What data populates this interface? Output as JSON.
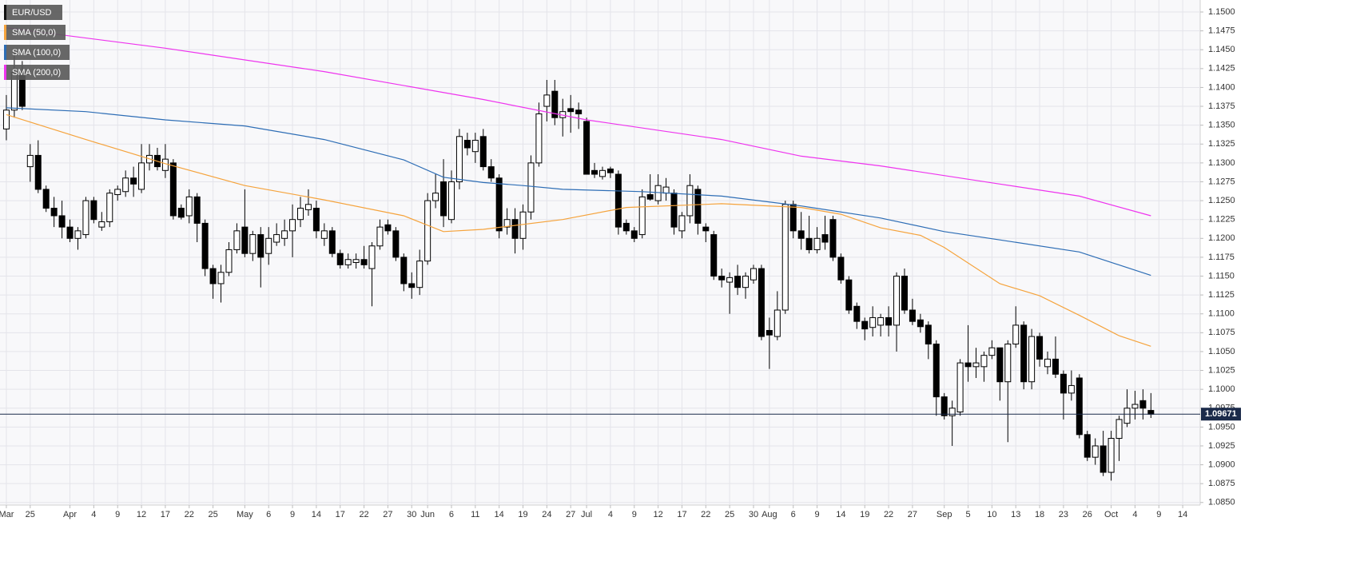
{
  "chart_data": {
    "type": "candlestick",
    "categories": [
      null,
      null,
      null,
      null,
      null,
      null,
      null,
      null,
      null,
      null,
      null,
      null,
      null,
      null,
      null,
      null,
      null,
      null,
      null,
      null,
      null,
      null,
      null,
      null,
      null,
      null,
      null,
      null,
      null,
      null,
      null,
      null,
      null,
      null,
      null,
      null,
      null,
      null,
      null,
      null,
      null,
      null,
      null,
      null,
      null,
      null,
      null,
      null,
      null,
      null,
      null,
      null,
      null,
      null,
      null,
      null,
      null,
      null,
      null,
      null,
      null,
      null,
      null,
      null,
      null,
      null,
      null,
      null,
      null,
      null,
      null,
      null,
      null,
      null,
      null,
      null,
      null,
      null,
      null,
      null,
      null,
      null,
      null,
      null,
      null,
      null,
      null,
      null,
      null,
      null,
      null,
      null,
      null,
      null,
      null,
      null,
      null,
      null,
      null,
      null,
      null,
      null,
      null,
      null,
      null,
      null,
      null,
      null,
      null,
      null,
      null,
      null,
      null,
      null,
      null,
      null,
      null,
      null,
      null,
      null,
      null,
      null,
      null,
      null,
      null,
      null,
      null,
      null,
      null,
      null,
      null,
      null,
      null,
      null,
      null,
      null,
      null,
      null,
      null,
      null,
      null,
      null,
      null,
      null,
      null
    ],
    "series": [
      {
        "name": "EUR/USD",
        "color": "#000000",
        "open": [
          1.1345,
          1.137,
          1.142,
          1.1295,
          1.131,
          1.1265,
          1.124,
          1.123,
          1.1215,
          1.12,
          1.1205,
          1.125,
          1.1215,
          1.1222,
          1.1258,
          1.1262,
          1.128,
          1.1265,
          1.13,
          1.131,
          1.129,
          1.13,
          1.124,
          1.123,
          1.1255,
          1.122,
          1.116,
          1.114,
          1.1155,
          1.1185,
          1.1215,
          1.118,
          1.1205,
          1.118,
          1.1195,
          1.12,
          1.121,
          1.1225,
          1.1238,
          1.124,
          1.12,
          1.121,
          1.118,
          1.1165,
          1.1168,
          1.1172,
          1.116,
          1.119,
          1.1218,
          1.121,
          1.1175,
          1.114,
          1.1135,
          1.117,
          1.125,
          1.1275,
          1.1225,
          1.1275,
          1.133,
          1.1315,
          1.1335,
          1.1295,
          1.128,
          1.1215,
          1.1225,
          1.12,
          1.1235,
          1.13,
          1.1375,
          1.1395,
          1.136,
          1.1372,
          1.137,
          1.1355,
          1.129,
          1.1282,
          1.1292,
          1.1285,
          1.122,
          1.121,
          1.1205,
          1.1258,
          1.125,
          1.126,
          1.126,
          1.121,
          1.123,
          1.1265,
          1.1215,
          1.1205,
          1.115,
          1.1142,
          1.115,
          1.1135,
          1.1145,
          1.116,
          1.1078,
          1.107,
          1.1105,
          1.1245,
          1.121,
          1.12,
          1.1185,
          1.1205,
          1.1225,
          1.1175,
          1.1145,
          1.111,
          1.109,
          1.1082,
          1.1085,
          1.1095,
          1.1085,
          1.115,
          1.1105,
          1.1092,
          1.1085,
          1.106,
          1.099,
          1.0965,
          1.097,
          1.1035,
          1.103,
          1.103,
          1.1045,
          1.1055,
          1.101,
          1.106,
          1.1085,
          1.101,
          1.107,
          1.103,
          1.104,
          1.102,
          1.0995,
          1.1015,
          1.094,
          1.091,
          1.0925,
          1.089,
          1.0935,
          1.0955,
          1.0975,
          1.0985,
          1.0972
        ],
        "high": [
          1.139,
          1.145,
          1.1435,
          1.1325,
          1.133,
          1.127,
          1.1255,
          1.125,
          1.1225,
          1.1215,
          1.1255,
          1.1255,
          1.1235,
          1.1265,
          1.127,
          1.129,
          1.1295,
          1.1325,
          1.1325,
          1.132,
          1.1325,
          1.1305,
          1.1245,
          1.1265,
          1.126,
          1.1225,
          1.1165,
          1.1165,
          1.1195,
          1.122,
          1.1265,
          1.121,
          1.1215,
          1.1215,
          1.122,
          1.1225,
          1.1245,
          1.1255,
          1.1265,
          1.125,
          1.122,
          1.1215,
          1.1185,
          1.118,
          1.118,
          1.119,
          1.1195,
          1.1225,
          1.1225,
          1.1215,
          1.118,
          1.1155,
          1.1185,
          1.126,
          1.1285,
          1.1305,
          1.129,
          1.1345,
          1.134,
          1.134,
          1.1345,
          1.1305,
          1.1285,
          1.124,
          1.124,
          1.1245,
          1.131,
          1.138,
          1.141,
          1.141,
          1.1385,
          1.139,
          1.138,
          1.136,
          1.13,
          1.1295,
          1.1295,
          1.129,
          1.1225,
          1.1215,
          1.1265,
          1.1285,
          1.1285,
          1.128,
          1.1265,
          1.1235,
          1.1285,
          1.127,
          1.122,
          1.121,
          1.116,
          1.1155,
          1.1165,
          1.1155,
          1.1165,
          1.1165,
          1.1095,
          1.113,
          1.125,
          1.125,
          1.1235,
          1.123,
          1.1215,
          1.123,
          1.123,
          1.118,
          1.115,
          1.1115,
          1.1095,
          1.111,
          1.11,
          1.111,
          1.1155,
          1.116,
          1.112,
          1.11,
          1.109,
          1.1065,
          1.0995,
          1.0985,
          1.104,
          1.1085,
          1.1055,
          1.105,
          1.1065,
          1.1055,
          1.1065,
          1.111,
          1.109,
          1.108,
          1.1075,
          1.105,
          1.107,
          1.1025,
          1.1025,
          1.102,
          1.0945,
          1.0935,
          1.0945,
          1.0945,
          1.0965,
          1.1,
          1.0998,
          1.1,
          1.0995
        ],
        "low": [
          1.133,
          1.136,
          1.137,
          1.1275,
          1.126,
          1.1235,
          1.1215,
          1.12,
          1.1195,
          1.1185,
          1.12,
          1.122,
          1.121,
          1.1215,
          1.125,
          1.1255,
          1.1255,
          1.126,
          1.129,
          1.129,
          1.128,
          1.1225,
          1.1225,
          1.122,
          1.1195,
          1.115,
          1.112,
          1.1115,
          1.115,
          1.118,
          1.1175,
          1.117,
          1.1135,
          1.1165,
          1.119,
          1.119,
          1.1175,
          1.1215,
          1.123,
          1.12,
          1.119,
          1.1175,
          1.116,
          1.116,
          1.116,
          1.116,
          1.111,
          1.1185,
          1.1205,
          1.117,
          1.113,
          1.112,
          1.1125,
          1.1165,
          1.124,
          1.1215,
          1.122,
          1.1265,
          1.131,
          1.13,
          1.129,
          1.1275,
          1.12,
          1.1205,
          1.118,
          1.1185,
          1.1225,
          1.1295,
          1.1355,
          1.135,
          1.1335,
          1.134,
          1.1345,
          1.1285,
          1.128,
          1.1278,
          1.128,
          1.1205,
          1.1205,
          1.1195,
          1.12,
          1.125,
          1.1245,
          1.125,
          1.1205,
          1.12,
          1.122,
          1.1205,
          1.1195,
          1.1145,
          1.1135,
          1.11,
          1.1125,
          1.112,
          1.114,
          1.1065,
          1.1027,
          1.1065,
          1.11,
          1.12,
          1.1185,
          1.118,
          1.118,
          1.1185,
          1.117,
          1.114,
          1.11,
          1.108,
          1.1065,
          1.107,
          1.107,
          1.107,
          1.105,
          1.11,
          1.1085,
          1.1075,
          1.104,
          1.0965,
          1.096,
          1.0925,
          1.0965,
          1.101,
          1.1015,
          1.101,
          1.104,
          1.0985,
          1.093,
          1.1055,
          1.1,
          1.1,
          1.103,
          1.102,
          1.1015,
          1.096,
          1.0985,
          1.0935,
          1.0905,
          1.09,
          1.0885,
          1.0879,
          1.0905,
          1.095,
          1.096,
          1.096,
          1.0962
        ],
        "close": [
          1.137,
          1.142,
          1.1375,
          1.131,
          1.1265,
          1.124,
          1.123,
          1.1215,
          1.12,
          1.121,
          1.125,
          1.1225,
          1.1222,
          1.126,
          1.1265,
          1.128,
          1.1272,
          1.13,
          1.131,
          1.1295,
          1.1305,
          1.123,
          1.1228,
          1.1255,
          1.122,
          1.116,
          1.114,
          1.1155,
          1.1185,
          1.121,
          1.118,
          1.1205,
          1.1175,
          1.12,
          1.1205,
          1.121,
          1.1225,
          1.124,
          1.1245,
          1.121,
          1.121,
          1.118,
          1.1165,
          1.1172,
          1.1172,
          1.1165,
          1.119,
          1.1215,
          1.121,
          1.1175,
          1.114,
          1.1135,
          1.117,
          1.125,
          1.126,
          1.123,
          1.1275,
          1.1335,
          1.132,
          1.133,
          1.1295,
          1.128,
          1.121,
          1.1225,
          1.12,
          1.1235,
          1.13,
          1.1365,
          1.139,
          1.136,
          1.1368,
          1.1368,
          1.1365,
          1.1285,
          1.1285,
          1.129,
          1.1287,
          1.1215,
          1.121,
          1.12,
          1.1255,
          1.1252,
          1.127,
          1.1268,
          1.1215,
          1.123,
          1.127,
          1.122,
          1.121,
          1.115,
          1.1145,
          1.1148,
          1.1135,
          1.115,
          1.116,
          1.107,
          1.1072,
          1.1105,
          1.1245,
          1.121,
          1.12,
          1.1185,
          1.12,
          1.1195,
          1.1175,
          1.1145,
          1.1105,
          1.109,
          1.108,
          1.1095,
          1.1095,
          1.1085,
          1.115,
          1.1105,
          1.109,
          1.1083,
          1.106,
          1.099,
          1.0965,
          1.0975,
          1.1035,
          1.103,
          1.1035,
          1.1045,
          1.1055,
          1.101,
          1.106,
          1.1085,
          1.101,
          1.107,
          1.104,
          1.104,
          1.102,
          1.0995,
          1.1005,
          1.094,
          1.091,
          1.0925,
          1.089,
          1.0935,
          1.096,
          1.0975,
          1.098,
          1.0975,
          1.0967
        ]
      },
      {
        "name": "SMA (50,0)",
        "color": "#f5a33c",
        "x": [
          0,
          10,
          20,
          30,
          40,
          50,
          55,
          60,
          70,
          78,
          90,
          100,
          105,
          110,
          115,
          118,
          125,
          130,
          135,
          140,
          144
        ],
        "values": [
          1.1364,
          1.1331,
          1.1299,
          1.127,
          1.1251,
          1.123,
          1.1209,
          1.1212,
          1.1225,
          1.1241,
          1.1246,
          1.1241,
          1.1232,
          1.1214,
          1.1204,
          1.1188,
          1.114,
          1.1124,
          1.1098,
          1.1071,
          1.1057
        ]
      },
      {
        "name": "SMA (100,0)",
        "color": "#2d6db5",
        "x": [
          0,
          10,
          20,
          30,
          40,
          50,
          55,
          60,
          65,
          70,
          80,
          90,
          100,
          110,
          118,
          125,
          135,
          144
        ],
        "values": [
          1.1373,
          1.1368,
          1.1357,
          1.1349,
          1.1331,
          1.1304,
          1.1281,
          1.1274,
          1.127,
          1.1265,
          1.1262,
          1.1256,
          1.1243,
          1.1227,
          1.1209,
          1.1198,
          1.1182,
          1.1151
        ]
      },
      {
        "name": "SMA (200,0)",
        "color": "#ee33ee",
        "x": [
          0,
          20,
          40,
          60,
          73,
          90,
          100,
          110,
          125,
          135,
          144
        ],
        "values": [
          1.1479,
          1.1452,
          1.1421,
          1.1384,
          1.1357,
          1.1331,
          1.1309,
          1.1296,
          1.1272,
          1.1256,
          1.123
        ]
      }
    ],
    "last_price": 1.09671,
    "xlim": [
      -0.8,
      150.2
    ],
    "ylim": [
      1.08466,
      1.15159
    ],
    "xticks": [
      {
        "value": 0,
        "label": "Mar"
      },
      {
        "value": 3,
        "label": "25"
      },
      {
        "value": 8,
        "label": "Apr"
      },
      {
        "value": 11,
        "label": "4"
      },
      {
        "value": 14,
        "label": "9"
      },
      {
        "value": 17,
        "label": "12"
      },
      {
        "value": 20,
        "label": "17"
      },
      {
        "value": 23,
        "label": "22"
      },
      {
        "value": 26,
        "label": "25"
      },
      {
        "value": 30,
        "label": "May"
      },
      {
        "value": 33,
        "label": "6"
      },
      {
        "value": 36,
        "label": "9"
      },
      {
        "value": 39,
        "label": "14"
      },
      {
        "value": 42,
        "label": "17"
      },
      {
        "value": 45,
        "label": "22"
      },
      {
        "value": 48,
        "label": "27"
      },
      {
        "value": 51,
        "label": "30"
      },
      {
        "value": 53,
        "label": "Jun"
      },
      {
        "value": 56,
        "label": "6"
      },
      {
        "value": 59,
        "label": "11"
      },
      {
        "value": 62,
        "label": "14"
      },
      {
        "value": 65,
        "label": "19"
      },
      {
        "value": 68,
        "label": "24"
      },
      {
        "value": 71,
        "label": "27"
      },
      {
        "value": 73,
        "label": "Jul"
      },
      {
        "value": 76,
        "label": "4"
      },
      {
        "value": 79,
        "label": "9"
      },
      {
        "value": 82,
        "label": "12"
      },
      {
        "value": 85,
        "label": "17"
      },
      {
        "value": 88,
        "label": "22"
      },
      {
        "value": 91,
        "label": "25"
      },
      {
        "value": 94,
        "label": "30"
      },
      {
        "value": 96,
        "label": "Aug"
      },
      {
        "value": 99,
        "label": "6"
      },
      {
        "value": 102,
        "label": "9"
      },
      {
        "value": 105,
        "label": "14"
      },
      {
        "value": 108,
        "label": "19"
      },
      {
        "value": 111,
        "label": "22"
      },
      {
        "value": 114,
        "label": "27"
      },
      {
        "value": 118,
        "label": "Sep"
      },
      {
        "value": 121,
        "label": "5"
      },
      {
        "value": 124,
        "label": "10"
      },
      {
        "value": 127,
        "label": "13"
      },
      {
        "value": 130,
        "label": "18"
      },
      {
        "value": 133,
        "label": "23"
      },
      {
        "value": 136,
        "label": "26"
      },
      {
        "value": 139,
        "label": "Oct"
      },
      {
        "value": 142,
        "label": "4"
      },
      {
        "value": 145,
        "label": "9"
      },
      {
        "value": 148,
        "label": "14"
      }
    ],
    "yticks": [
      {
        "value": 1.085,
        "label": "1.0850"
      },
      {
        "value": 1.0875,
        "label": "1.0875"
      },
      {
        "value": 1.09,
        "label": "1.0900"
      },
      {
        "value": 1.0925,
        "label": "1.0925"
      },
      {
        "value": 1.095,
        "label": "1.0950"
      },
      {
        "value": 1.0975,
        "label": "1.0975"
      },
      {
        "value": 1.1,
        "label": "1.1000"
      },
      {
        "value": 1.1025,
        "label": "1.1025"
      },
      {
        "value": 1.105,
        "label": "1.1050"
      },
      {
        "value": 1.1075,
        "label": "1.1075"
      },
      {
        "value": 1.11,
        "label": "1.1100"
      },
      {
        "value": 1.1125,
        "label": "1.1125"
      },
      {
        "value": 1.115,
        "label": "1.1150"
      },
      {
        "value": 1.1175,
        "label": "1.1175"
      },
      {
        "value": 1.12,
        "label": "1.1200"
      },
      {
        "value": 1.1225,
        "label": "1.1225"
      },
      {
        "value": 1.125,
        "label": "1.1250"
      },
      {
        "value": 1.1275,
        "label": "1.1275"
      },
      {
        "value": 1.13,
        "label": "1.1300"
      },
      {
        "value": 1.1325,
        "label": "1.1325"
      },
      {
        "value": 1.135,
        "label": "1.1350"
      },
      {
        "value": 1.1375,
        "label": "1.1375"
      },
      {
        "value": 1.14,
        "label": "1.1400"
      },
      {
        "value": 1.1425,
        "label": "1.1425"
      },
      {
        "value": 1.145,
        "label": "1.1450"
      },
      {
        "value": 1.1475,
        "label": "1.1475"
      },
      {
        "value": 1.15,
        "label": "1.1500"
      }
    ],
    "grid": true,
    "legend": "top-left",
    "price_tag_color": "#1b2a4a"
  }
}
